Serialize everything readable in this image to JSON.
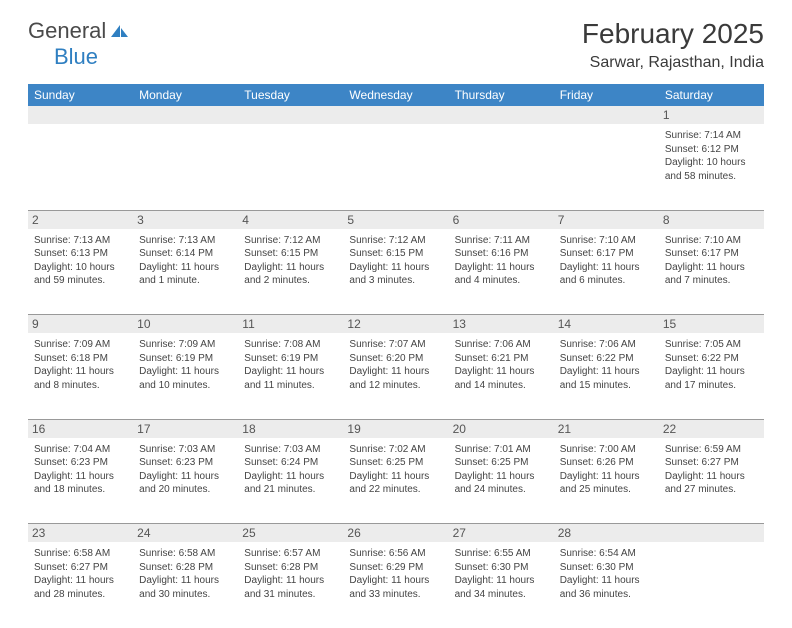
{
  "logo": {
    "text1": "General",
    "text2": "Blue",
    "icon_fill": "#2f7fc1"
  },
  "title": "February 2025",
  "location": "Sarwar, Rajasthan, India",
  "colors": {
    "header_bg": "#3d85c6",
    "header_text": "#ffffff",
    "daynum_bg": "#ececec",
    "border": "#999999",
    "body_text": "#444444",
    "title_text": "#3a3a3a"
  },
  "day_headers": [
    "Sunday",
    "Monday",
    "Tuesday",
    "Wednesday",
    "Thursday",
    "Friday",
    "Saturday"
  ],
  "weeks": [
    [
      {
        "n": "",
        "sr": "",
        "ss": "",
        "dl": ""
      },
      {
        "n": "",
        "sr": "",
        "ss": "",
        "dl": ""
      },
      {
        "n": "",
        "sr": "",
        "ss": "",
        "dl": ""
      },
      {
        "n": "",
        "sr": "",
        "ss": "",
        "dl": ""
      },
      {
        "n": "",
        "sr": "",
        "ss": "",
        "dl": ""
      },
      {
        "n": "",
        "sr": "",
        "ss": "",
        "dl": ""
      },
      {
        "n": "1",
        "sr": "Sunrise: 7:14 AM",
        "ss": "Sunset: 6:12 PM",
        "dl": "Daylight: 10 hours and 58 minutes."
      }
    ],
    [
      {
        "n": "2",
        "sr": "Sunrise: 7:13 AM",
        "ss": "Sunset: 6:13 PM",
        "dl": "Daylight: 10 hours and 59 minutes."
      },
      {
        "n": "3",
        "sr": "Sunrise: 7:13 AM",
        "ss": "Sunset: 6:14 PM",
        "dl": "Daylight: 11 hours and 1 minute."
      },
      {
        "n": "4",
        "sr": "Sunrise: 7:12 AM",
        "ss": "Sunset: 6:15 PM",
        "dl": "Daylight: 11 hours and 2 minutes."
      },
      {
        "n": "5",
        "sr": "Sunrise: 7:12 AM",
        "ss": "Sunset: 6:15 PM",
        "dl": "Daylight: 11 hours and 3 minutes."
      },
      {
        "n": "6",
        "sr": "Sunrise: 7:11 AM",
        "ss": "Sunset: 6:16 PM",
        "dl": "Daylight: 11 hours and 4 minutes."
      },
      {
        "n": "7",
        "sr": "Sunrise: 7:10 AM",
        "ss": "Sunset: 6:17 PM",
        "dl": "Daylight: 11 hours and 6 minutes."
      },
      {
        "n": "8",
        "sr": "Sunrise: 7:10 AM",
        "ss": "Sunset: 6:17 PM",
        "dl": "Daylight: 11 hours and 7 minutes."
      }
    ],
    [
      {
        "n": "9",
        "sr": "Sunrise: 7:09 AM",
        "ss": "Sunset: 6:18 PM",
        "dl": "Daylight: 11 hours and 8 minutes."
      },
      {
        "n": "10",
        "sr": "Sunrise: 7:09 AM",
        "ss": "Sunset: 6:19 PM",
        "dl": "Daylight: 11 hours and 10 minutes."
      },
      {
        "n": "11",
        "sr": "Sunrise: 7:08 AM",
        "ss": "Sunset: 6:19 PM",
        "dl": "Daylight: 11 hours and 11 minutes."
      },
      {
        "n": "12",
        "sr": "Sunrise: 7:07 AM",
        "ss": "Sunset: 6:20 PM",
        "dl": "Daylight: 11 hours and 12 minutes."
      },
      {
        "n": "13",
        "sr": "Sunrise: 7:06 AM",
        "ss": "Sunset: 6:21 PM",
        "dl": "Daylight: 11 hours and 14 minutes."
      },
      {
        "n": "14",
        "sr": "Sunrise: 7:06 AM",
        "ss": "Sunset: 6:22 PM",
        "dl": "Daylight: 11 hours and 15 minutes."
      },
      {
        "n": "15",
        "sr": "Sunrise: 7:05 AM",
        "ss": "Sunset: 6:22 PM",
        "dl": "Daylight: 11 hours and 17 minutes."
      }
    ],
    [
      {
        "n": "16",
        "sr": "Sunrise: 7:04 AM",
        "ss": "Sunset: 6:23 PM",
        "dl": "Daylight: 11 hours and 18 minutes."
      },
      {
        "n": "17",
        "sr": "Sunrise: 7:03 AM",
        "ss": "Sunset: 6:23 PM",
        "dl": "Daylight: 11 hours and 20 minutes."
      },
      {
        "n": "18",
        "sr": "Sunrise: 7:03 AM",
        "ss": "Sunset: 6:24 PM",
        "dl": "Daylight: 11 hours and 21 minutes."
      },
      {
        "n": "19",
        "sr": "Sunrise: 7:02 AM",
        "ss": "Sunset: 6:25 PM",
        "dl": "Daylight: 11 hours and 22 minutes."
      },
      {
        "n": "20",
        "sr": "Sunrise: 7:01 AM",
        "ss": "Sunset: 6:25 PM",
        "dl": "Daylight: 11 hours and 24 minutes."
      },
      {
        "n": "21",
        "sr": "Sunrise: 7:00 AM",
        "ss": "Sunset: 6:26 PM",
        "dl": "Daylight: 11 hours and 25 minutes."
      },
      {
        "n": "22",
        "sr": "Sunrise: 6:59 AM",
        "ss": "Sunset: 6:27 PM",
        "dl": "Daylight: 11 hours and 27 minutes."
      }
    ],
    [
      {
        "n": "23",
        "sr": "Sunrise: 6:58 AM",
        "ss": "Sunset: 6:27 PM",
        "dl": "Daylight: 11 hours and 28 minutes."
      },
      {
        "n": "24",
        "sr": "Sunrise: 6:58 AM",
        "ss": "Sunset: 6:28 PM",
        "dl": "Daylight: 11 hours and 30 minutes."
      },
      {
        "n": "25",
        "sr": "Sunrise: 6:57 AM",
        "ss": "Sunset: 6:28 PM",
        "dl": "Daylight: 11 hours and 31 minutes."
      },
      {
        "n": "26",
        "sr": "Sunrise: 6:56 AM",
        "ss": "Sunset: 6:29 PM",
        "dl": "Daylight: 11 hours and 33 minutes."
      },
      {
        "n": "27",
        "sr": "Sunrise: 6:55 AM",
        "ss": "Sunset: 6:30 PM",
        "dl": "Daylight: 11 hours and 34 minutes."
      },
      {
        "n": "28",
        "sr": "Sunrise: 6:54 AM",
        "ss": "Sunset: 6:30 PM",
        "dl": "Daylight: 11 hours and 36 minutes."
      },
      {
        "n": "",
        "sr": "",
        "ss": "",
        "dl": ""
      }
    ]
  ]
}
